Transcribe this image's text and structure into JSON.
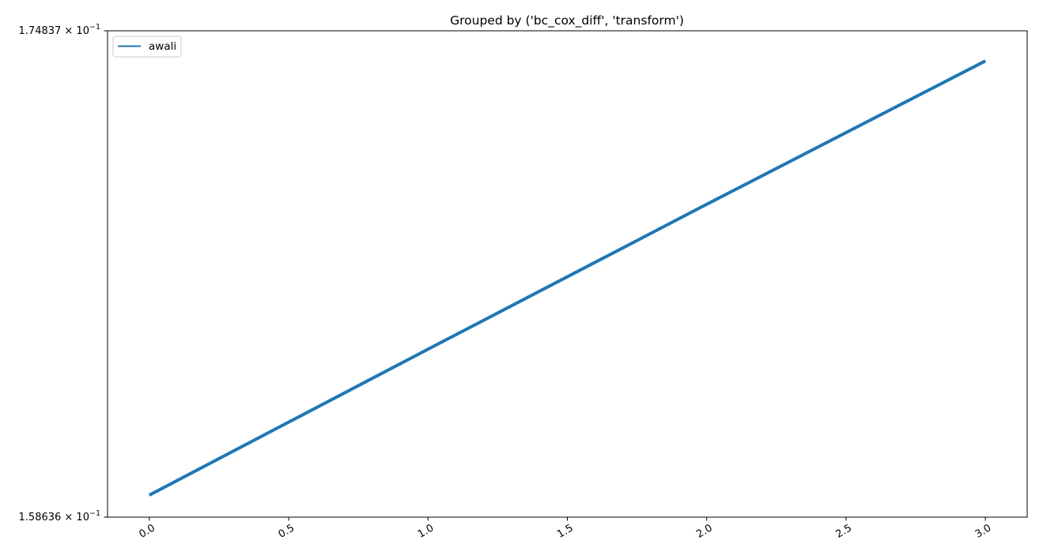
{
  "chart_data": {
    "type": "line",
    "title": "Grouped by ('bc_cox_diff', 'transform')",
    "xlabel": "",
    "ylabel": "",
    "yscale": "log",
    "ylim": [
      0.158636,
      0.174837
    ],
    "xlim": [
      -0.15,
      3.15
    ],
    "grid": false,
    "legend_position": "top-left",
    "x": [
      0,
      1,
      2,
      3
    ],
    "series": [
      {
        "name": "awali",
        "color": "#1f77b4",
        "values": [
          0.159337,
          0.164054,
          0.168876,
          0.173786
        ]
      }
    ],
    "x_ticks": [
      {
        "value": 0.0,
        "label": "0.0"
      },
      {
        "value": 0.5,
        "label": "0.5"
      },
      {
        "value": 1.0,
        "label": "1.0"
      },
      {
        "value": 1.5,
        "label": "1.5"
      },
      {
        "value": 2.0,
        "label": "2.0"
      },
      {
        "value": 2.5,
        "label": "2.5"
      },
      {
        "value": 3.0,
        "label": "3.0"
      }
    ],
    "y_ticks": [
      {
        "value": 0.174837,
        "mantissa": "1.74837",
        "exponent": "−1"
      },
      {
        "value": 0.158636,
        "mantissa": "1.58636",
        "exponent": "−1"
      }
    ]
  }
}
